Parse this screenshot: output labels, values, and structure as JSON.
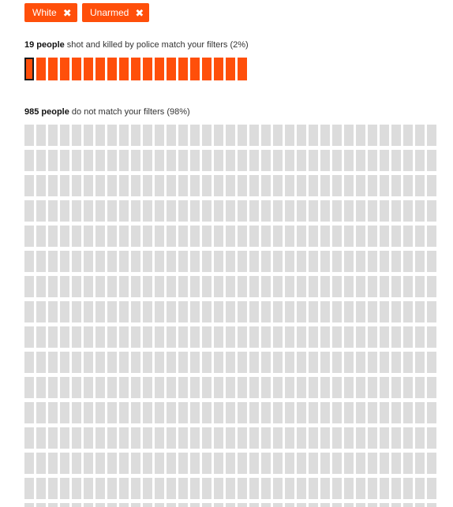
{
  "filters": [
    {
      "label": "White",
      "remove_icon": "close-icon"
    },
    {
      "label": "Unarmed",
      "remove_icon": "close-icon"
    }
  ],
  "match": {
    "count_text": "19 people",
    "rest_text": " shot and killed by police match your filters (2%)",
    "count": 19,
    "selected_index": 0,
    "color": "#ff4f0a"
  },
  "nomatch": {
    "count_text": "985 people",
    "rest_text": " do not match your filters (98%)",
    "count": 985,
    "color": "#dcdcdc"
  }
}
